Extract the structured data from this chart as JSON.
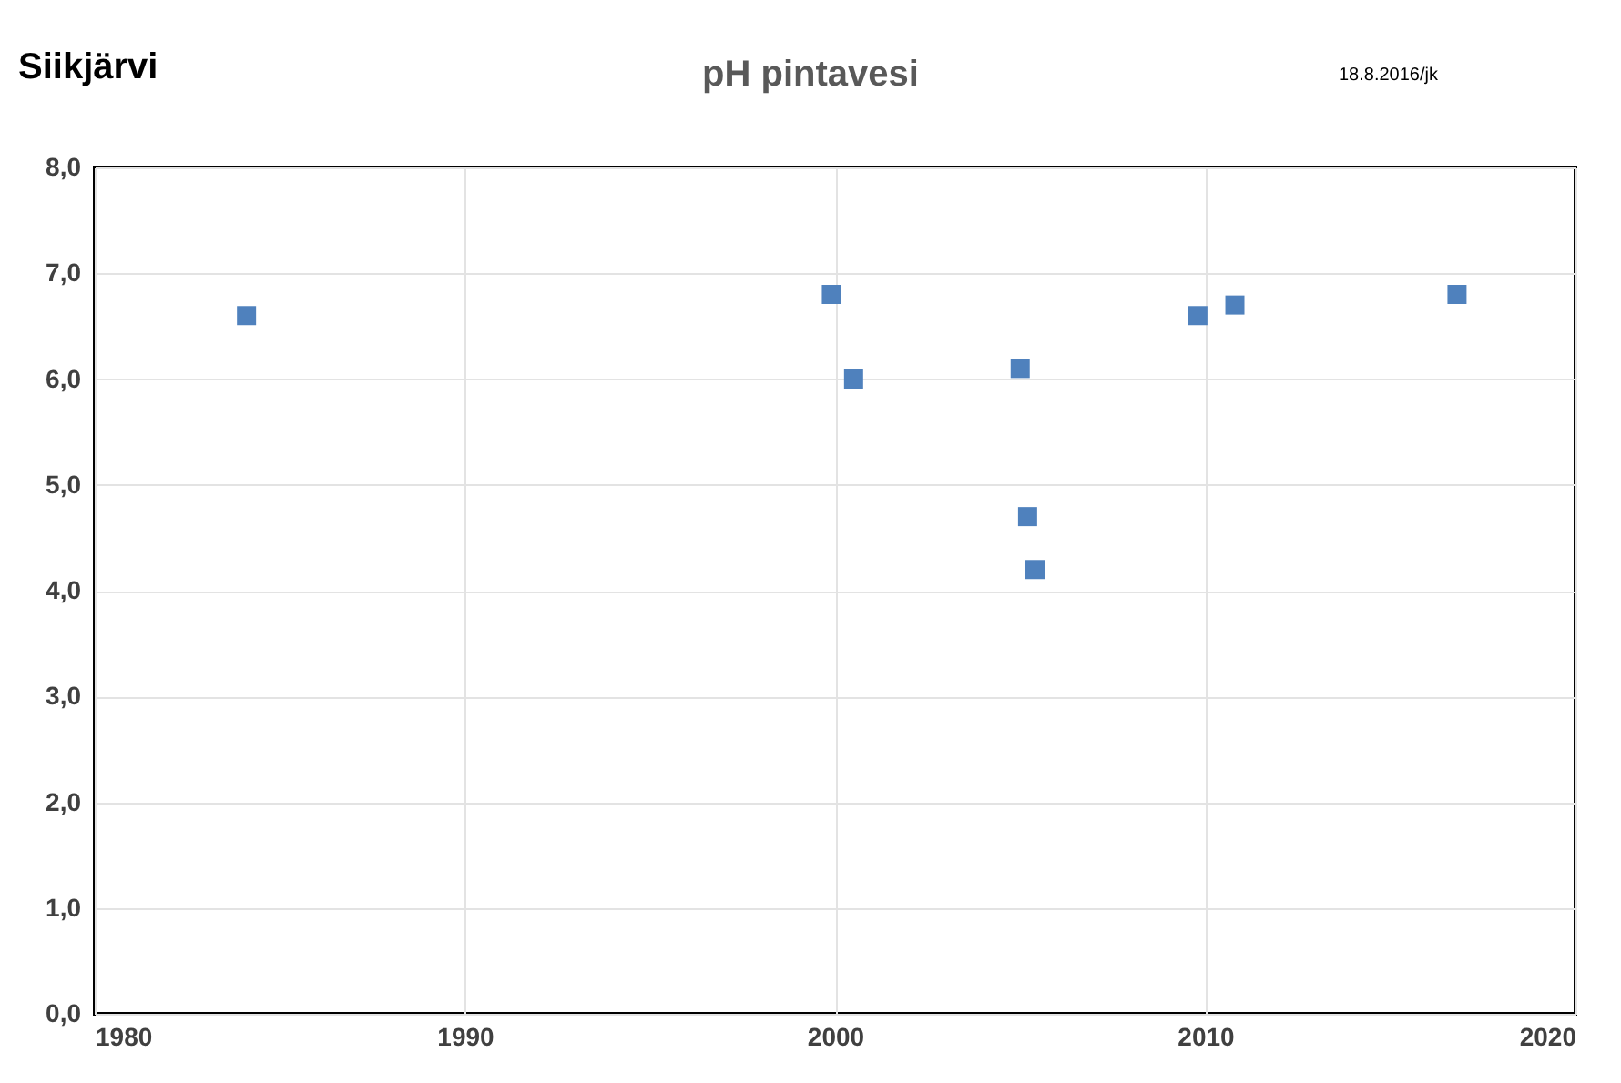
{
  "chart_data": {
    "type": "scatter",
    "title": "pH pintavesi",
    "annotations": [
      "Siikjärvi",
      "18.8.2016/jk"
    ],
    "x": [
      1984.1,
      1999.9,
      2000.5,
      2005.0,
      2005.2,
      2005.4,
      2009.8,
      2010.8,
      2016.8
    ],
    "series": [
      {
        "color": "#4f81bd",
        "values": [
          6.6,
          6.8,
          6.0,
          6.1,
          4.7,
          4.2,
          6.6,
          6.7,
          6.8
        ]
      }
    ],
    "xlim": [
      1980,
      2020
    ],
    "xticks": [
      1980,
      1990,
      2000,
      2010,
      2020
    ],
    "ylim": [
      0,
      8
    ],
    "yticks": [
      {
        "value": 0,
        "label": "0,0"
      },
      {
        "value": 1,
        "label": "1,0"
      },
      {
        "value": 2,
        "label": "2,0"
      },
      {
        "value": 3,
        "label": "3,0"
      },
      {
        "value": 4,
        "label": "4,0"
      },
      {
        "value": 5,
        "label": "5,0"
      },
      {
        "value": 6,
        "label": "6,0"
      },
      {
        "value": 7,
        "label": "7,0"
      },
      {
        "value": 8,
        "label": "8,0"
      }
    ],
    "grid": true,
    "marker": "square"
  }
}
